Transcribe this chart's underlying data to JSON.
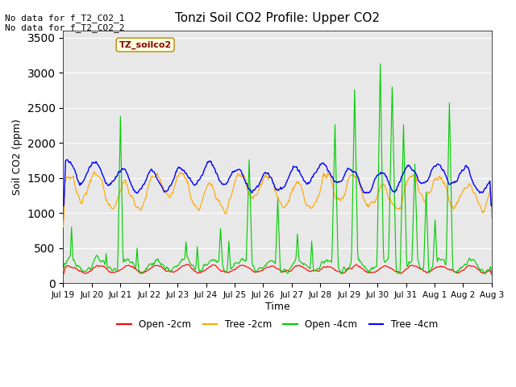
{
  "title": "Tonzi Soil CO2 Profile: Upper CO2",
  "ylabel": "Soil CO2 (ppm)",
  "xlabel": "Time",
  "ylim": [
    0,
    3600
  ],
  "yticks": [
    0,
    500,
    1000,
    1500,
    2000,
    2500,
    3000,
    3500
  ],
  "annotation_top_left": "No data for f_T2_CO2_1\nNo data for f_T2_CO2_2",
  "legend_label_top": "TZ_soilco2",
  "legend_labels": [
    "Open -2cm",
    "Tree -2cm",
    "Open -4cm",
    "Tree -4cm"
  ],
  "line_colors": [
    "#ff0000",
    "#ffa500",
    "#00cc00",
    "#0000ff"
  ],
  "background_color": "#e8e8e8",
  "x_tick_labels": [
    "Jul 19",
    "Jul 20",
    "Jul 21",
    "Jul 22",
    "Jul 23",
    "Jul 24",
    "Jul 25",
    "Jul 26",
    "Jul 27",
    "Jul 28",
    "Jul 29",
    "Jul 30",
    "Jul 31",
    "Aug 1",
    "Aug 2",
    "Aug 3"
  ],
  "n_days": 15,
  "seed": 42
}
